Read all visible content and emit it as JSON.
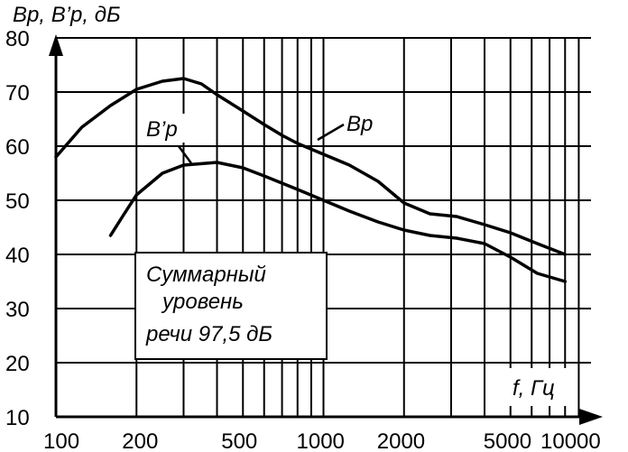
{
  "chart_data": {
    "type": "line",
    "ylabel": "Вр, В’р, дБ",
    "xlabel": "f, Гц",
    "x_scale": "log",
    "xlim": [
      100,
      10000
    ],
    "ylim": [
      10,
      80
    ],
    "grid": true,
    "x_ticks": [
      100,
      200,
      500,
      1000,
      2000,
      5000,
      10000
    ],
    "x_tick_labels": [
      "100",
      "200",
      "500",
      "1000",
      "2000",
      "5000",
      "10000"
    ],
    "y_ticks": [
      10,
      20,
      30,
      40,
      50,
      60,
      70,
      80
    ],
    "y_tick_labels": [
      "10",
      "20",
      "30",
      "40",
      "50",
      "60",
      "70",
      "80"
    ],
    "series": [
      {
        "name": "Вр",
        "points": [
          [
            100,
            58
          ],
          [
            125,
            63.5
          ],
          [
            160,
            67.5
          ],
          [
            200,
            70.5
          ],
          [
            250,
            72
          ],
          [
            300,
            72.5
          ],
          [
            350,
            71.5
          ],
          [
            400,
            69.5
          ],
          [
            500,
            66.5
          ],
          [
            600,
            64
          ],
          [
            700,
            62
          ],
          [
            800,
            60.5
          ],
          [
            1000,
            58.5
          ],
          [
            1250,
            56.5
          ],
          [
            1600,
            53.5
          ],
          [
            2000,
            49.5
          ],
          [
            2500,
            47.5
          ],
          [
            3150,
            47
          ],
          [
            4000,
            45.5
          ],
          [
            5000,
            44
          ],
          [
            6300,
            42
          ],
          [
            8000,
            40
          ]
        ]
      },
      {
        "name": "В’р",
        "points": [
          [
            160,
            43.5
          ],
          [
            180,
            47.5
          ],
          [
            200,
            51
          ],
          [
            250,
            55
          ],
          [
            300,
            56.5
          ],
          [
            400,
            57
          ],
          [
            500,
            56
          ],
          [
            600,
            54.5
          ],
          [
            800,
            52
          ],
          [
            1000,
            50
          ],
          [
            1250,
            48
          ],
          [
            1600,
            46
          ],
          [
            2000,
            44.5
          ],
          [
            2500,
            43.5
          ],
          [
            3150,
            43
          ],
          [
            4000,
            42
          ],
          [
            5000,
            39.5
          ],
          [
            6300,
            36.5
          ],
          [
            8000,
            35
          ]
        ]
      }
    ],
    "annotations": {
      "series_label_1": "Вр",
      "series_label_2": "В’р",
      "box_lines": [
        "Суммарный",
        "уровень",
        "речи  97,5 дБ"
      ]
    }
  }
}
